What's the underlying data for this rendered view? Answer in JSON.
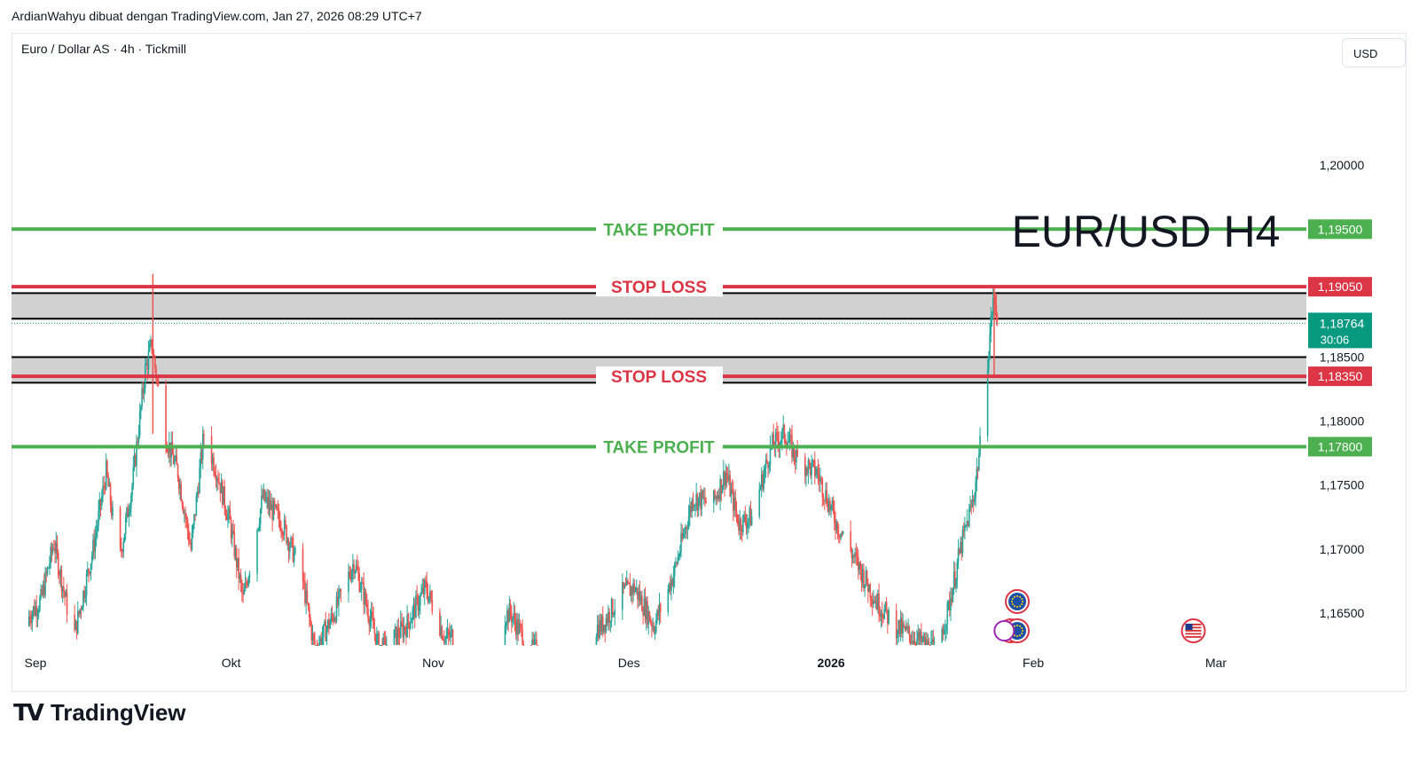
{
  "header": {
    "attribution": "ArdianWahyu dibuat dengan TradingView.com, Jan 27, 2026 08:29 UTC+7"
  },
  "symbol": {
    "title": "Euro / Dollar AS · 4h · Tickmill"
  },
  "currency_button": {
    "label": "USD"
  },
  "brand": {
    "name": "TradingView"
  },
  "colors": {
    "up": "#26a69a",
    "down": "#ef5350",
    "take_profit": "#4caf50",
    "stop_loss": "#dc3545",
    "current": "#089981"
  },
  "chart_data": {
    "type": "candlestick",
    "title": "EUR/USD H4",
    "ylim": [
      1.1625,
      1.2075
    ],
    "y_ticks": [
      "1,16500",
      "1,17000",
      "1,17500",
      "1,18000",
      "1,18500",
      "1,20000"
    ],
    "x_ticks": [
      {
        "label": "Sep",
        "date": "2025-09-01"
      },
      {
        "label": "Okt",
        "date": "2025-10-01"
      },
      {
        "label": "Nov",
        "date": "2025-11-01"
      },
      {
        "label": "Des",
        "date": "2025-12-01"
      },
      {
        "label": "2026",
        "date": "2026-01-01"
      },
      {
        "label": "Feb",
        "date": "2026-02-01"
      },
      {
        "label": "Mar",
        "date": "2026-03-01"
      }
    ],
    "levels": [
      {
        "kind": "take_profit",
        "label": "TAKE PROFIT",
        "value": 1.195,
        "value_label": "1,19500"
      },
      {
        "kind": "stop_loss",
        "label": "STOP LOSS",
        "value": 1.1905,
        "value_label": "1,19050"
      },
      {
        "kind": "stop_loss",
        "label": "STOP LOSS",
        "value": 1.1835,
        "value_label": "1,18350"
      },
      {
        "kind": "take_profit",
        "label": "TAKE PROFIT",
        "value": 1.178,
        "value_label": "1,17800"
      }
    ],
    "zones": [
      {
        "from": 1.188,
        "to": 1.19
      },
      {
        "from": 1.183,
        "to": 1.185
      }
    ],
    "current_price": {
      "value": 1.18764,
      "label": "1,18764",
      "countdown": "30:06"
    },
    "price_path": [
      [
        "2025-08-30",
        1.164
      ],
      [
        "2025-09-02",
        1.166
      ],
      [
        "2025-09-04",
        1.1705
      ],
      [
        "2025-09-07",
        1.163
      ],
      [
        "2025-09-10",
        1.17
      ],
      [
        "2025-09-12",
        1.176
      ],
      [
        "2025-09-14",
        1.169
      ],
      [
        "2025-09-16",
        1.175
      ],
      [
        "2025-09-18",
        1.184
      ],
      [
        "2025-09-19",
        1.186
      ],
      [
        "2025-09-21",
        1.179
      ],
      [
        "2025-09-23",
        1.176
      ],
      [
        "2025-09-25",
        1.17
      ],
      [
        "2025-09-27",
        1.179
      ],
      [
        "2025-09-29",
        1.176
      ],
      [
        "2025-10-01",
        1.172
      ],
      [
        "2025-10-03",
        1.166
      ],
      [
        "2025-10-06",
        1.174
      ],
      [
        "2025-10-09",
        1.172
      ],
      [
        "2025-10-12",
        1.168
      ],
      [
        "2025-10-14",
        1.162
      ],
      [
        "2025-10-17",
        1.165
      ],
      [
        "2025-10-20",
        1.169
      ],
      [
        "2025-10-24",
        1.162
      ],
      [
        "2025-10-28",
        1.164
      ],
      [
        "2025-10-31",
        1.167
      ],
      [
        "2025-11-03",
        1.163
      ],
      [
        "2025-11-13",
        1.165
      ],
      [
        "2025-11-16",
        1.162
      ],
      [
        "2025-11-27",
        1.164
      ],
      [
        "2025-11-30",
        1.1665
      ],
      [
        "2025-12-02",
        1.167
      ],
      [
        "2025-12-05",
        1.164
      ],
      [
        "2025-12-08",
        1.168
      ],
      [
        "2025-12-11",
        1.174
      ],
      [
        "2025-12-14",
        1.1735
      ],
      [
        "2025-12-16",
        1.176
      ],
      [
        "2025-12-18",
        1.172
      ],
      [
        "2025-12-20",
        1.1725
      ],
      [
        "2025-12-23",
        1.178
      ],
      [
        "2025-12-25",
        1.179
      ],
      [
        "2025-12-27",
        1.177
      ],
      [
        "2025-12-30",
        1.176
      ],
      [
        "2026-01-02",
        1.172
      ],
      [
        "2026-01-05",
        1.169
      ],
      [
        "2026-01-08",
        1.166
      ],
      [
        "2026-01-11",
        1.164
      ],
      [
        "2026-01-14",
        1.163
      ],
      [
        "2026-01-17",
        1.162
      ],
      [
        "2026-01-19",
        1.165
      ],
      [
        "2026-01-21",
        1.17
      ],
      [
        "2026-01-23",
        1.174
      ],
      [
        "2026-01-24",
        1.178
      ],
      [
        "2026-01-25",
        1.184
      ],
      [
        "2026-01-26",
        1.1895
      ],
      [
        "2026-01-27",
        1.18764
      ]
    ],
    "spikes": [
      {
        "date": "2025-09-19",
        "high": 1.1915,
        "low": 1.179
      },
      {
        "date": "2026-01-26",
        "high": 1.1905,
        "low": 1.1835
      }
    ],
    "events": [
      {
        "date": "2026-01-29",
        "icon": "eu-flag-icon",
        "row": 1
      },
      {
        "date": "2026-01-28",
        "icon": "eu-flag-icon",
        "row": 2
      },
      {
        "date": "2026-01-29",
        "icon": "eu-flag-icon",
        "row": 2
      },
      {
        "date": "2026-01-27",
        "icon": "event-icon",
        "row": 2
      },
      {
        "date": "2026-02-25",
        "icon": "us-flag-icon",
        "row": 2
      }
    ]
  }
}
